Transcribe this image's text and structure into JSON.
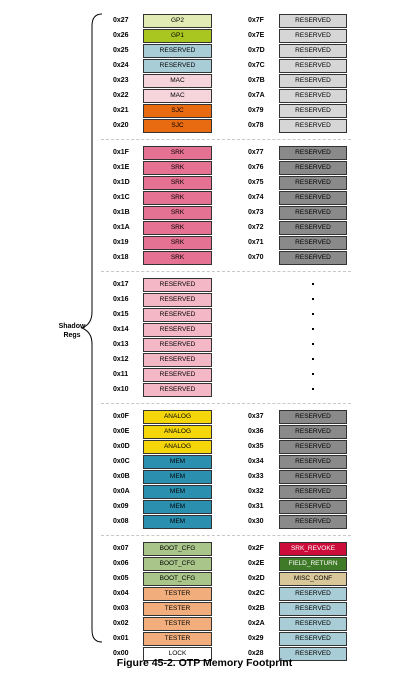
{
  "left_rows": [
    {
      "addr": "0x27",
      "label": "GP2",
      "color": "#e3ebb4"
    },
    {
      "addr": "0x26",
      "label": "GP1",
      "color": "#a9c51f"
    },
    {
      "addr": "0x25",
      "label": "RESERVED",
      "color": "#a9cdd6"
    },
    {
      "addr": "0x24",
      "label": "RESERVED",
      "color": "#a9cdd6"
    },
    {
      "addr": "0x23",
      "label": "MAC",
      "color": "#f6d4dc"
    },
    {
      "addr": "0x22",
      "label": "MAC",
      "color": "#f6d4dc"
    },
    {
      "addr": "0x21",
      "label": "SJC",
      "color": "#e86b12"
    },
    {
      "addr": "0x20",
      "label": "SJC",
      "color": "#e86b12"
    },
    {
      "addr": "0x1F",
      "label": "SRK",
      "color": "#e57292"
    },
    {
      "addr": "0x1E",
      "label": "SRK",
      "color": "#e57292"
    },
    {
      "addr": "0x1D",
      "label": "SRK",
      "color": "#e57292"
    },
    {
      "addr": "0x1C",
      "label": "SRK",
      "color": "#e57292"
    },
    {
      "addr": "0x1B",
      "label": "SRK",
      "color": "#e57292"
    },
    {
      "addr": "0x1A",
      "label": "SRK",
      "color": "#e57292"
    },
    {
      "addr": "0x19",
      "label": "SRK",
      "color": "#e57292"
    },
    {
      "addr": "0x18",
      "label": "SRK",
      "color": "#e57292"
    },
    {
      "addr": "0x17",
      "label": "RESERVED",
      "color": "#f3b7c6"
    },
    {
      "addr": "0x16",
      "label": "RESERVED",
      "color": "#f3b7c6"
    },
    {
      "addr": "0x15",
      "label": "RESERVED",
      "color": "#f3b7c6"
    },
    {
      "addr": "0x14",
      "label": "RESERVED",
      "color": "#f3b7c6"
    },
    {
      "addr": "0x13",
      "label": "RESERVED",
      "color": "#f3b7c6"
    },
    {
      "addr": "0x12",
      "label": "RESERVED",
      "color": "#f3b7c6"
    },
    {
      "addr": "0x11",
      "label": "RESERVED",
      "color": "#f3b7c6"
    },
    {
      "addr": "0x10",
      "label": "RESERVED",
      "color": "#f3b7c6"
    },
    {
      "addr": "0x0F",
      "label": "ANALOG",
      "color": "#f5d60a"
    },
    {
      "addr": "0x0E",
      "label": "ANALOG",
      "color": "#f5d60a"
    },
    {
      "addr": "0x0D",
      "label": "ANALOG",
      "color": "#f5d60a"
    },
    {
      "addr": "0x0C",
      "label": "MEM",
      "color": "#2b8fb0"
    },
    {
      "addr": "0x0B",
      "label": "MEM",
      "color": "#2b8fb0"
    },
    {
      "addr": "0x0A",
      "label": "MEM",
      "color": "#2b8fb0"
    },
    {
      "addr": "0x09",
      "label": "MEM",
      "color": "#2b8fb0"
    },
    {
      "addr": "0x08",
      "label": "MEM",
      "color": "#2b8fb0"
    },
    {
      "addr": "0x07",
      "label": "BOOT_CFG",
      "color": "#a9c58a"
    },
    {
      "addr": "0x06",
      "label": "BOOT_CFG",
      "color": "#a9c58a"
    },
    {
      "addr": "0x05",
      "label": "BOOT_CFG",
      "color": "#a9c58a"
    },
    {
      "addr": "0x04",
      "label": "TESTER",
      "color": "#f1ae7c"
    },
    {
      "addr": "0x03",
      "label": "TESTER",
      "color": "#f1ae7c"
    },
    {
      "addr": "0x02",
      "label": "TESTER",
      "color": "#f1ae7c"
    },
    {
      "addr": "0x01",
      "label": "TESTER",
      "color": "#f1ae7c"
    },
    {
      "addr": "0x00",
      "label": "LOCK",
      "color": "#ffffff"
    }
  ],
  "right_rows": [
    {
      "addr": "0x7F",
      "label": "RESERVED",
      "color": "#d6d6d6"
    },
    {
      "addr": "0x7E",
      "label": "RESERVED",
      "color": "#d6d6d6"
    },
    {
      "addr": "0x7D",
      "label": "RESERVED",
      "color": "#d6d6d6"
    },
    {
      "addr": "0x7C",
      "label": "RESERVED",
      "color": "#d6d6d6"
    },
    {
      "addr": "0x7B",
      "label": "RESERVED",
      "color": "#d6d6d6"
    },
    {
      "addr": "0x7A",
      "label": "RESERVED",
      "color": "#d6d6d6"
    },
    {
      "addr": "0x79",
      "label": "RESERVED",
      "color": "#d6d6d6"
    },
    {
      "addr": "0x78",
      "label": "RESERVED",
      "color": "#d6d6d6"
    },
    {
      "addr": "0x77",
      "label": "RESERVED",
      "color": "#8a8a8a"
    },
    {
      "addr": "0x76",
      "label": "RESERVED",
      "color": "#8a8a8a"
    },
    {
      "addr": "0x75",
      "label": "RESERVED",
      "color": "#8a8a8a"
    },
    {
      "addr": "0x74",
      "label": "RESERVED",
      "color": "#8a8a8a"
    },
    {
      "addr": "0x73",
      "label": "RESERVED",
      "color": "#8a8a8a"
    },
    {
      "addr": "0x72",
      "label": "RESERVED",
      "color": "#8a8a8a"
    },
    {
      "addr": "0x71",
      "label": "RESERVED",
      "color": "#8a8a8a"
    },
    {
      "addr": "0x70",
      "label": "RESERVED",
      "color": "#8a8a8a"
    },
    {
      "addr": "0x37",
      "label": "RESERVED",
      "color": "#8a8a8a"
    },
    {
      "addr": "0x36",
      "label": "RESERVED",
      "color": "#8a8a8a"
    },
    {
      "addr": "0x35",
      "label": "RESERVED",
      "color": "#8a8a8a"
    },
    {
      "addr": "0x34",
      "label": "RESERVED",
      "color": "#8a8a8a"
    },
    {
      "addr": "0x33",
      "label": "RESERVED",
      "color": "#8a8a8a"
    },
    {
      "addr": "0x32",
      "label": "RESERVED",
      "color": "#8a8a8a"
    },
    {
      "addr": "0x31",
      "label": "RESERVED",
      "color": "#8a8a8a"
    },
    {
      "addr": "0x30",
      "label": "RESERVED",
      "color": "#8a8a8a"
    },
    {
      "addr": "0x2F",
      "label": "SRK_REVOKE",
      "color": "#cc0c3b"
    },
    {
      "addr": "0x2E",
      "label": "FIELD_RETURN",
      "color": "#3f7a28"
    },
    {
      "addr": "0x2D",
      "label": "MISC_CONF",
      "color": "#d9c79a"
    },
    {
      "addr": "0x2C",
      "label": "RESERVED",
      "color": "#a9cdd6"
    },
    {
      "addr": "0x2B",
      "label": "RESERVED",
      "color": "#a9cdd6"
    },
    {
      "addr": "0x2A",
      "label": "RESERVED",
      "color": "#a9cdd6"
    },
    {
      "addr": "0x29",
      "label": "RESERVED",
      "color": "#a9cdd6"
    },
    {
      "addr": "0x28",
      "label": "RESERVED",
      "color": "#a9cdd6"
    }
  ],
  "shadow_label": "Shadow\nRegs",
  "caption": "Figure 45-2. OTP Memory Footprint"
}
